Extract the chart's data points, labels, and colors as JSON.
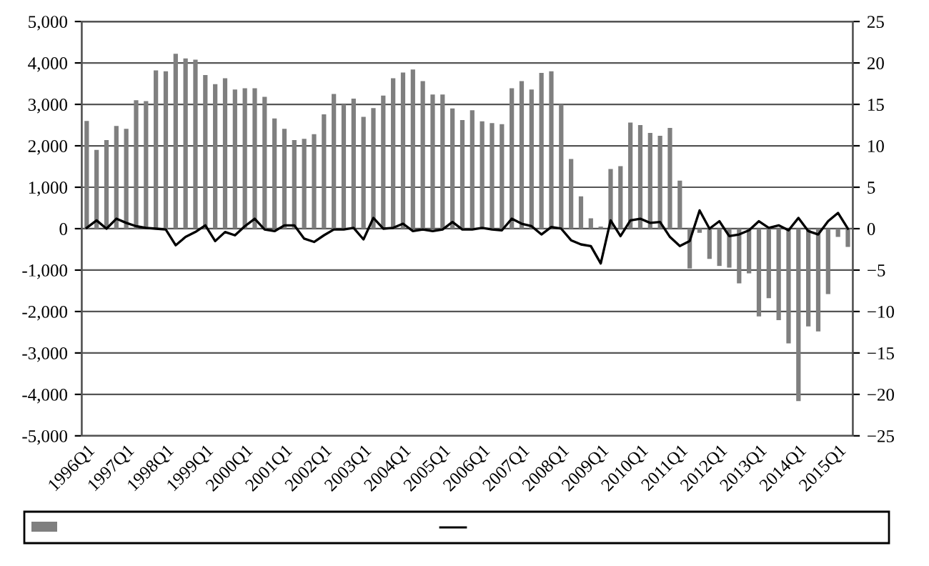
{
  "chart_data": {
    "type": "bar",
    "categories": [
      "1996Q1",
      null,
      null,
      null,
      "1997Q1",
      null,
      null,
      null,
      "1998Q1",
      null,
      null,
      null,
      "1999Q1",
      null,
      null,
      null,
      "2000Q1",
      null,
      null,
      null,
      "2001Q1",
      null,
      null,
      null,
      "2002Q1",
      null,
      null,
      null,
      "2003Q1",
      null,
      null,
      null,
      "2004Q1",
      null,
      null,
      null,
      "2005Q1",
      null,
      null,
      null,
      "2006Q1",
      null,
      null,
      null,
      "2007Q1",
      null,
      null,
      null,
      "2008Q1",
      null,
      null,
      null,
      "2009Q1",
      null,
      null,
      null,
      "2010Q1",
      null,
      null,
      null,
      "2011Q1",
      null,
      null,
      null,
      "2012Q1",
      null,
      null,
      null,
      "2013Q1",
      null,
      null,
      null,
      "2014Q1",
      null,
      null,
      null,
      "2015Q1",
      null
    ],
    "series": [
      {
        "color": "#7f7f7f",
        "values": [
          2600,
          1900,
          2140,
          2480,
          2410,
          3100,
          3080,
          3820,
          3800,
          4220,
          4110,
          4080,
          3710,
          3490,
          3630,
          3360,
          3390,
          3390,
          3180,
          2660,
          2410,
          2140,
          2170,
          2280,
          2760,
          3250,
          3000,
          3140,
          2700,
          2910,
          3210,
          3630,
          3770,
          3840,
          3560,
          3240,
          3240,
          2900,
          2620,
          2860,
          2590,
          2550,
          2520,
          3390,
          3560,
          3360,
          3760,
          3800,
          3000,
          1680,
          780,
          250,
          50,
          1440,
          1510,
          2560,
          2500,
          2310,
          2240,
          2430,
          1160,
          -960,
          -100,
          -730,
          -900,
          -940,
          -1320,
          -1080,
          -2120,
          -1680,
          -2210,
          -2770,
          -4160,
          -2360,
          -2480,
          -1580,
          -200,
          -440
        ]
      },
      {
        "type": "line",
        "axis": "y2",
        "color": "#000000",
        "values": [
          0.1,
          1.0,
          0,
          1.2,
          0.7,
          0.3,
          0.1,
          0,
          -0.1,
          -2.0,
          -1.0,
          -0.4,
          0.4,
          -1.5,
          -0.4,
          -0.8,
          0.3,
          1.2,
          -0.1,
          -0.3,
          0.4,
          0.4,
          -1.2,
          -1.6,
          -0.8,
          -0.1,
          -0.1,
          0.1,
          -1.3,
          1.3,
          0,
          0.1,
          0.6,
          -0.3,
          -0.1,
          -0.3,
          -0.1,
          0.8,
          -0.1,
          -0.1,
          0.1,
          -0.1,
          -0.2,
          1.2,
          0.6,
          0.3,
          -0.7,
          0.2,
          0,
          -1.4,
          -1.9,
          -2.1,
          -4.2,
          1.0,
          -0.9,
          1.0,
          1.2,
          0.7,
          0.8,
          -1.0,
          -2.1,
          -1.5,
          2.2,
          0,
          0.9,
          -0.9,
          -0.7,
          -0.2,
          0.9,
          0.1,
          0.4,
          -0.2,
          1.3,
          -0.3,
          -0.7,
          0.9,
          1.9,
          0
        ]
      }
    ],
    "ylim": [
      -5000,
      5000
    ],
    "yticks": [
      {
        "value": -5000,
        "label": "-5,000"
      },
      {
        "value": -4000,
        "label": "-4,000"
      },
      {
        "value": -3000,
        "label": "-3,000"
      },
      {
        "value": -2000,
        "label": "-2,000"
      },
      {
        "value": -1000,
        "label": "-1,000"
      },
      0,
      {
        "value": 1000,
        "label": "1,000"
      },
      {
        "value": 2000,
        "label": "2,000"
      },
      {
        "value": 3000,
        "label": "3,000"
      },
      {
        "value": 4000,
        "label": "4,000"
      },
      {
        "value": 5000,
        "label": "5,000"
      }
    ],
    "y2lim": [
      -25,
      25
    ],
    "y2ticks": [
      {
        "value": -25,
        "label": "−25"
      },
      {
        "value": -20,
        "label": "−20"
      },
      {
        "value": -15,
        "label": "−15"
      },
      {
        "value": -10,
        "label": "−10"
      },
      {
        "value": -5,
        "label": "−5"
      },
      0,
      5,
      10,
      15,
      20,
      25
    ],
    "grid": "y"
  }
}
